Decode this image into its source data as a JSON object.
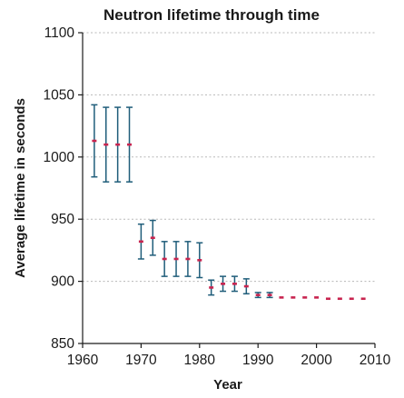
{
  "chart_data": {
    "type": "scatter",
    "title": "Neutron lifetime through time",
    "xlabel": "Year",
    "ylabel": "Average lifetime in seconds",
    "xlim": [
      1960,
      2010
    ],
    "ylim": [
      850,
      1100
    ],
    "x_ticks": [
      "1960",
      "1970",
      "1980",
      "1990",
      "2000",
      "2010"
    ],
    "y_ticks": [
      "850",
      "900",
      "950",
      "1000",
      "1050",
      "1100"
    ],
    "grid": "horizontal dotted",
    "colors": {
      "error_bar": "#1f5d7a",
      "point": "#c8244f",
      "grid": "#b8b8b8"
    },
    "series": [
      {
        "points": [
          {
            "x": 1962,
            "y": 1013,
            "ylow": 984,
            "yhigh": 1042
          },
          {
            "x": 1964,
            "y": 1010,
            "ylow": 980,
            "yhigh": 1040
          },
          {
            "x": 1966,
            "y": 1010,
            "ylow": 980,
            "yhigh": 1040
          },
          {
            "x": 1968,
            "y": 1010,
            "ylow": 980,
            "yhigh": 1040
          },
          {
            "x": 1970,
            "y": 932,
            "ylow": 918,
            "yhigh": 946
          },
          {
            "x": 1972,
            "y": 935,
            "ylow": 921,
            "yhigh": 949
          },
          {
            "x": 1974,
            "y": 918,
            "ylow": 904,
            "yhigh": 932
          },
          {
            "x": 1976,
            "y": 918,
            "ylow": 904,
            "yhigh": 932
          },
          {
            "x": 1978,
            "y": 918,
            "ylow": 904,
            "yhigh": 932
          },
          {
            "x": 1980,
            "y": 917,
            "ylow": 903,
            "yhigh": 931
          },
          {
            "x": 1982,
            "y": 895,
            "ylow": 889,
            "yhigh": 901
          },
          {
            "x": 1984,
            "y": 898,
            "ylow": 892,
            "yhigh": 904
          },
          {
            "x": 1986,
            "y": 898,
            "ylow": 892,
            "yhigh": 904
          },
          {
            "x": 1988,
            "y": 896,
            "ylow": 890,
            "yhigh": 902
          },
          {
            "x": 1990,
            "y": 889,
            "ylow": 887,
            "yhigh": 891
          },
          {
            "x": 1992,
            "y": 889,
            "ylow": 887,
            "yhigh": 891
          },
          {
            "x": 1994,
            "y": 887,
            "ylow": 886,
            "yhigh": 888
          },
          {
            "x": 1996,
            "y": 887,
            "ylow": 886,
            "yhigh": 888
          },
          {
            "x": 1998,
            "y": 887,
            "ylow": 886,
            "yhigh": 888
          },
          {
            "x": 2000,
            "y": 887,
            "ylow": 886,
            "yhigh": 888
          },
          {
            "x": 2002,
            "y": 886,
            "ylow": 885,
            "yhigh": 887
          },
          {
            "x": 2004,
            "y": 886,
            "ylow": 885,
            "yhigh": 887
          },
          {
            "x": 2006,
            "y": 886,
            "ylow": 885,
            "yhigh": 887
          },
          {
            "x": 2008,
            "y": 886,
            "ylow": 885,
            "yhigh": 887
          }
        ]
      }
    ]
  }
}
